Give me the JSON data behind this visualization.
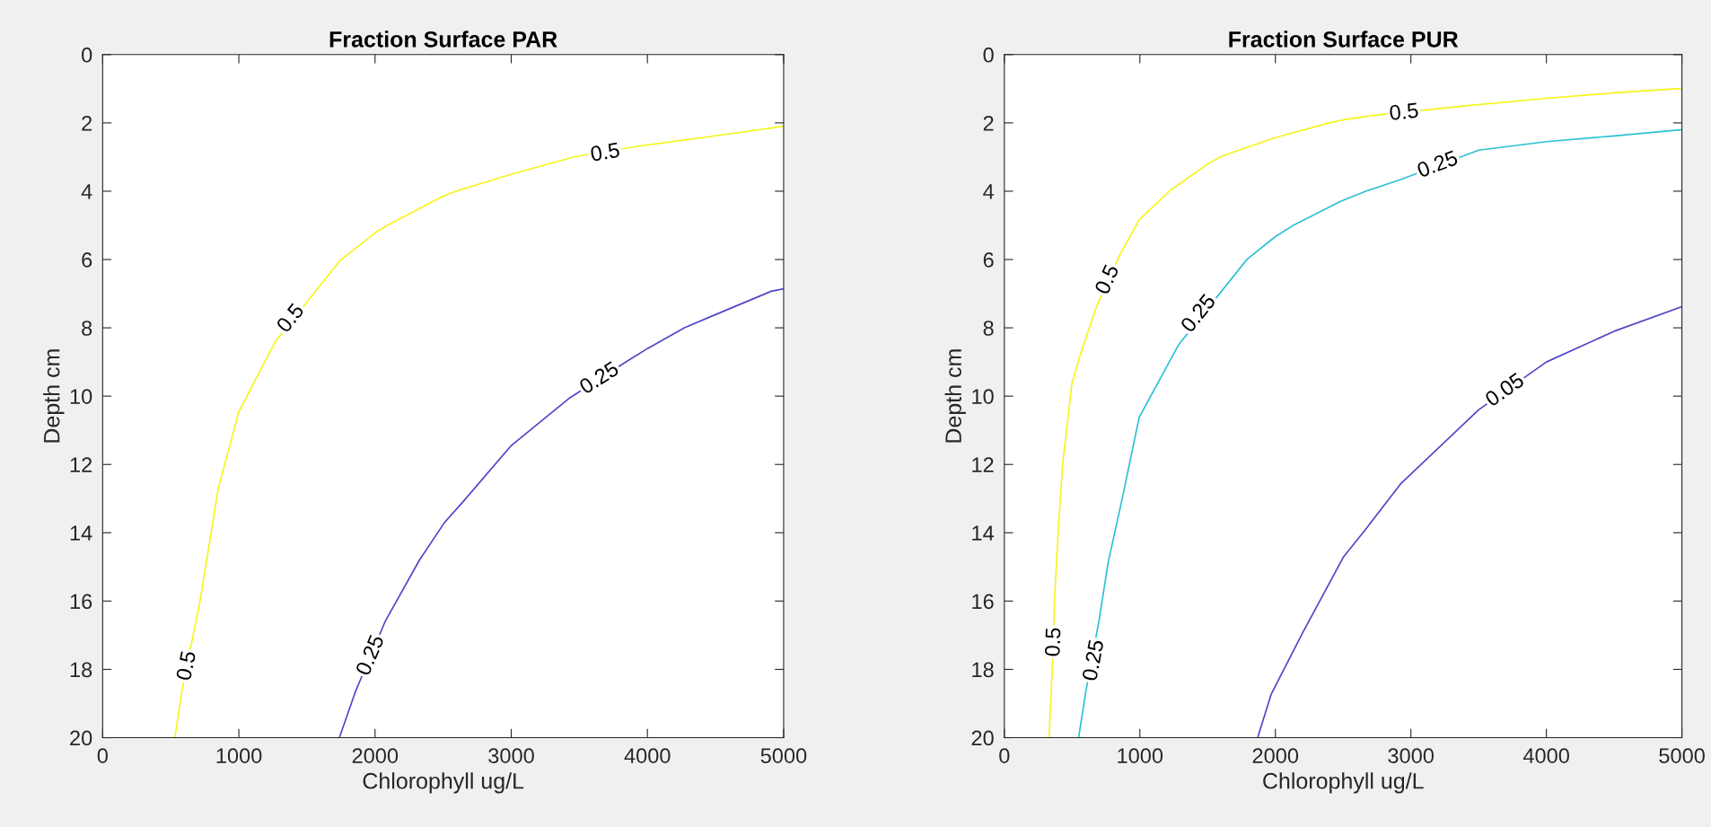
{
  "chart_data": [
    {
      "type": "line",
      "title": "Fraction Surface PAR",
      "xlabel": "Chlorophyll ug/L",
      "ylabel": "Depth cm",
      "xlim": [
        0,
        5000
      ],
      "xticks": [
        0,
        1000,
        2000,
        3000,
        4000,
        5000
      ],
      "ylim": [
        20,
        0
      ],
      "yticks": [
        0,
        2,
        4,
        6,
        8,
        10,
        12,
        14,
        16,
        18,
        20
      ],
      "grid": false,
      "marker": "none",
      "line_style": "solid",
      "series": [
        {
          "color": "#f5f51a",
          "x": [
            530,
            581,
            715,
            849,
            1000,
            1268,
            1738,
            2007,
            2090,
            2493,
            2594,
            2997,
            3466,
            3936,
            4440,
            5000
          ],
          "values": [
            20,
            18.65,
            16,
            12.7,
            10.45,
            8.4,
            6.05,
            5.2,
            5.0,
            4.16,
            4.0,
            3.51,
            2.99,
            2.68,
            2.41,
            2.1
          ]
        },
        {
          "color": "#5046c8",
          "x": [
            1738,
            1856,
            2074,
            2326,
            2510,
            2644,
            2997,
            3433,
            3869,
            4003,
            4272,
            4507,
            4909,
            5000
          ],
          "values": [
            20,
            18.65,
            16.6,
            14.8,
            13.7,
            13.1,
            11.46,
            10.04,
            8.93,
            8.6,
            8.0,
            7.6,
            6.93,
            6.86
          ]
        }
      ],
      "annotations": [
        {
          "text": "0.5",
          "x": 3691,
          "y": 2.9
        },
        {
          "text": "0.5",
          "x": 1386,
          "y": 7.74
        },
        {
          "text": "0.5",
          "x": 624,
          "y": 17.9
        },
        {
          "text": "0.25",
          "x": 3651,
          "y": 9.5
        },
        {
          "text": "0.25",
          "x": 1973,
          "y": 17.6
        }
      ]
    },
    {
      "type": "line",
      "title": "Fraction Surface PUR",
      "xlabel": "Chlorophyll ug/L",
      "ylabel": "Depth cm",
      "xlim": [
        0,
        5000
      ],
      "xticks": [
        0,
        1000,
        2000,
        3000,
        4000,
        5000
      ],
      "ylim": [
        20,
        0
      ],
      "yticks": [
        0,
        2,
        4,
        6,
        8,
        10,
        12,
        14,
        16,
        18,
        20
      ],
      "grid": false,
      "marker": "none",
      "line_style": "solid",
      "series": [
        {
          "color": "#f5f51a",
          "x": [
            329,
            353,
            370,
            397,
            430,
            498,
            558,
            675,
            850,
            995,
            1220,
            1506,
            1607,
            2000,
            2397,
            2514,
            2750,
            3400,
            4000,
            4500,
            5000
          ],
          "values": [
            20,
            18.08,
            16,
            13.96,
            12,
            9.64,
            8.82,
            7.43,
            5.88,
            4.84,
            3.99,
            3.19,
            2.97,
            2.43,
            2.0,
            1.9,
            1.77,
            1.5,
            1.28,
            1.12,
            0.99
          ]
        },
        {
          "color": "#2cc0d5",
          "x": [
            548,
            598,
            699,
            766,
            867,
            995,
            1287,
            1792,
            2000,
            2128,
            2481,
            2666,
            2924,
            3500,
            4000,
            4500,
            5000
          ],
          "values": [
            20,
            18.72,
            16.56,
            14.87,
            13.05,
            10.62,
            8.49,
            5.99,
            5.33,
            5.01,
            4.3,
            4.0,
            3.66,
            2.8,
            2.55,
            2.38,
            2.2
          ]
        },
        {
          "color": "#5046c8",
          "x": [
            1869,
            1970,
            2205,
            2504,
            2666,
            2924,
            3500,
            4000,
            4500,
            5000
          ],
          "values": [
            20,
            18.72,
            16.9,
            14.7,
            13.9,
            12.57,
            10.4,
            9.0,
            8.1,
            7.38
          ]
        }
      ],
      "annotations": [
        {
          "text": "0.5",
          "x": 2950,
          "y": 1.72
        },
        {
          "text": "0.5",
          "x": 767,
          "y": 6.6
        },
        {
          "text": "0.5",
          "x": 370,
          "y": 17.2
        },
        {
          "text": "0.25",
          "x": 3200,
          "y": 3.25
        },
        {
          "text": "0.25",
          "x": 1439,
          "y": 7.6
        },
        {
          "text": "0.25",
          "x": 666,
          "y": 17.74
        },
        {
          "text": "0.05",
          "x": 3698,
          "y": 9.85
        }
      ]
    }
  ]
}
